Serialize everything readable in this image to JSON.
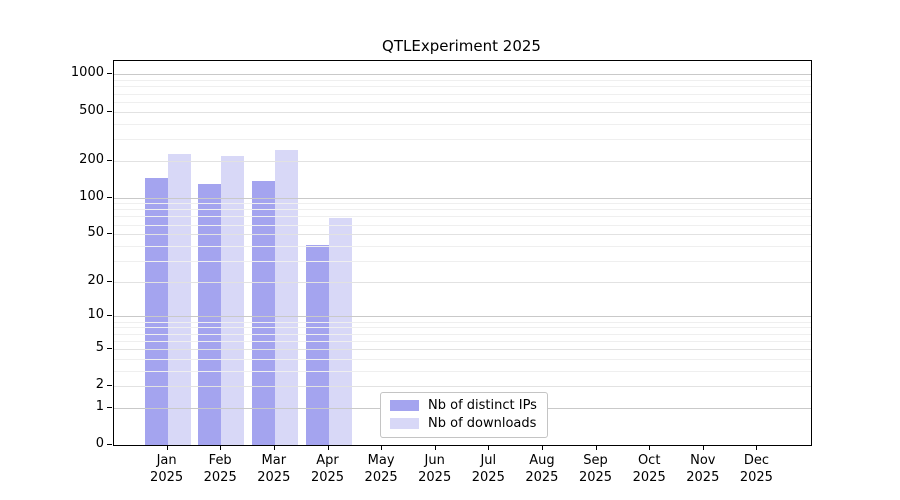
{
  "title": "QTLExperiment 2025",
  "chart_data": {
    "type": "bar",
    "title": "QTLExperiment 2025",
    "xlabel": "",
    "ylabel": "",
    "y_scale": "log1p",
    "ylim": [
      0,
      1285
    ],
    "grid": true,
    "legend_position": "bottom-center",
    "categories": [
      "Jan",
      "Feb",
      "Mar",
      "Apr",
      "May",
      "Jun",
      "Jul",
      "Aug",
      "Sep",
      "Oct",
      "Nov",
      "Dec"
    ],
    "year": "2025",
    "y_ticks": [
      1000,
      500,
      200,
      100,
      50,
      20,
      10,
      5,
      2,
      1,
      0
    ],
    "series": [
      {
        "name": "Nb of distinct IPs",
        "color": "#a4a4ef",
        "values": [
          145,
          129,
          137,
          41,
          0,
          0,
          0,
          0,
          0,
          0,
          0,
          0
        ]
      },
      {
        "name": "Nb of downloads",
        "color": "#d8d8f7",
        "values": [
          228,
          217,
          246,
          68,
          0,
          0,
          0,
          0,
          0,
          0,
          0,
          0
        ]
      }
    ]
  },
  "colors": {
    "spine": "#000000",
    "grid_decade": "#c9c9c9",
    "grid_labeled": "#e2e2e2",
    "grid_minor": "#efefef"
  }
}
